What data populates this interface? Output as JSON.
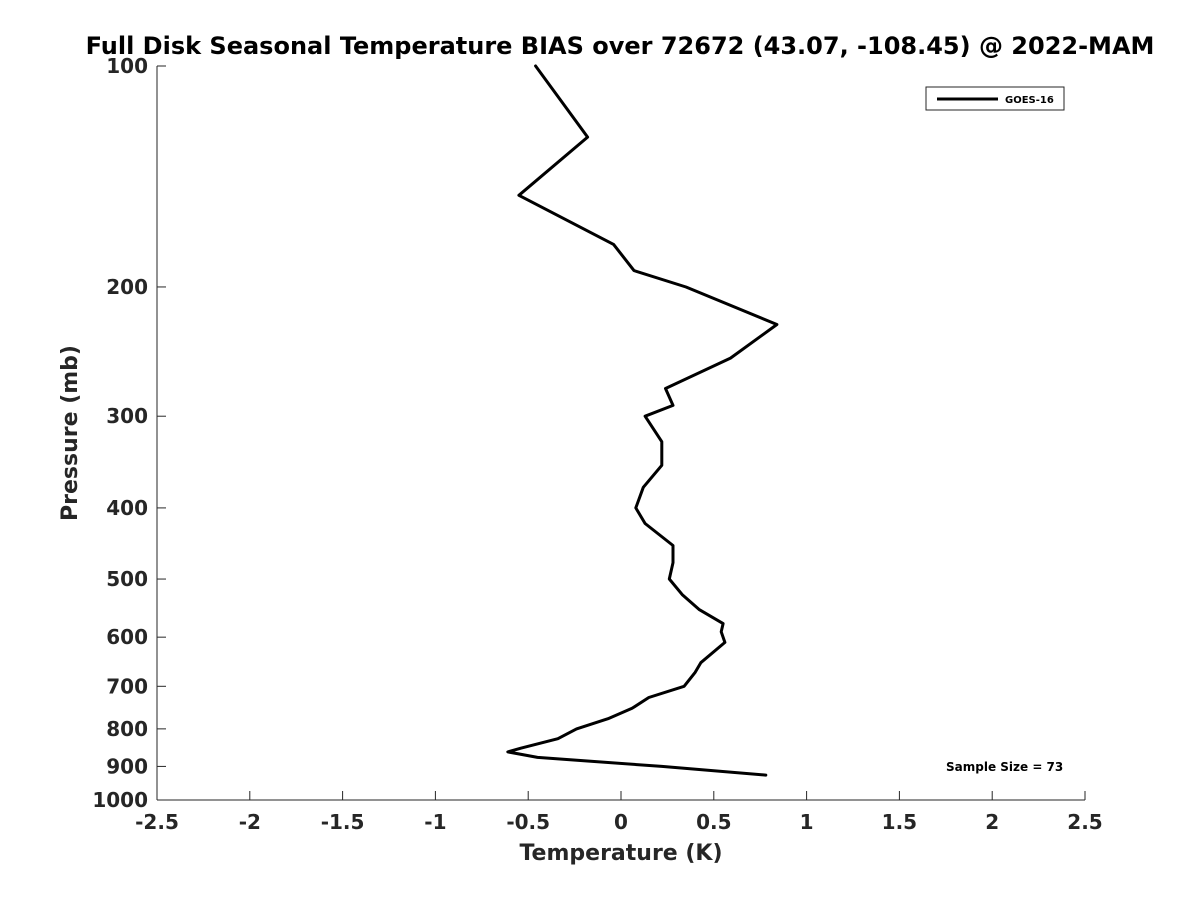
{
  "chart_data": {
    "type": "line",
    "title": "Full Disk Seasonal Temperature BIAS over 72672 (43.07, -108.45) @ 2022-MAM",
    "xlabel": "Temperature (K)",
    "ylabel": "Pressure (mb)",
    "xlim": [
      -2.5,
      2.5
    ],
    "ylim": [
      1000,
      100
    ],
    "yscale": "log",
    "x_ticks": [
      "-2.5",
      "-2",
      "-1.5",
      "-1",
      "-0.5",
      "0",
      "0.5",
      "1",
      "1.5",
      "2",
      "2.5"
    ],
    "y_ticks": [
      "100",
      "200",
      "300",
      "400",
      "500",
      "600",
      "700",
      "800",
      "900",
      "1000"
    ],
    "grid": false,
    "legend_position": "top-right",
    "series": [
      {
        "name": "GOES-16",
        "color": "#000000",
        "points": [
          {
            "x": -0.46,
            "p": 100
          },
          {
            "x": -0.18,
            "p": 125
          },
          {
            "x": -0.55,
            "p": 150
          },
          {
            "x": -0.04,
            "p": 175
          },
          {
            "x": 0.07,
            "p": 190
          },
          {
            "x": 0.35,
            "p": 200
          },
          {
            "x": 0.84,
            "p": 225
          },
          {
            "x": 0.59,
            "p": 250
          },
          {
            "x": 0.24,
            "p": 275
          },
          {
            "x": 0.28,
            "p": 290
          },
          {
            "x": 0.13,
            "p": 300
          },
          {
            "x": 0.22,
            "p": 325
          },
          {
            "x": 0.22,
            "p": 350
          },
          {
            "x": 0.12,
            "p": 375
          },
          {
            "x": 0.08,
            "p": 400
          },
          {
            "x": 0.13,
            "p": 420
          },
          {
            "x": 0.28,
            "p": 450
          },
          {
            "x": 0.28,
            "p": 475
          },
          {
            "x": 0.26,
            "p": 500
          },
          {
            "x": 0.33,
            "p": 525
          },
          {
            "x": 0.42,
            "p": 550
          },
          {
            "x": 0.55,
            "p": 575
          },
          {
            "x": 0.54,
            "p": 590
          },
          {
            "x": 0.56,
            "p": 610
          },
          {
            "x": 0.43,
            "p": 650
          },
          {
            "x": 0.4,
            "p": 670
          },
          {
            "x": 0.34,
            "p": 700
          },
          {
            "x": 0.15,
            "p": 725
          },
          {
            "x": 0.06,
            "p": 750
          },
          {
            "x": -0.07,
            "p": 775
          },
          {
            "x": -0.24,
            "p": 800
          },
          {
            "x": -0.34,
            "p": 825
          },
          {
            "x": -0.54,
            "p": 850
          },
          {
            "x": -0.61,
            "p": 860
          },
          {
            "x": -0.45,
            "p": 875
          },
          {
            "x": 0.22,
            "p": 900
          },
          {
            "x": 0.78,
            "p": 925
          }
        ]
      }
    ],
    "annotation": "Sample Size = 73"
  }
}
